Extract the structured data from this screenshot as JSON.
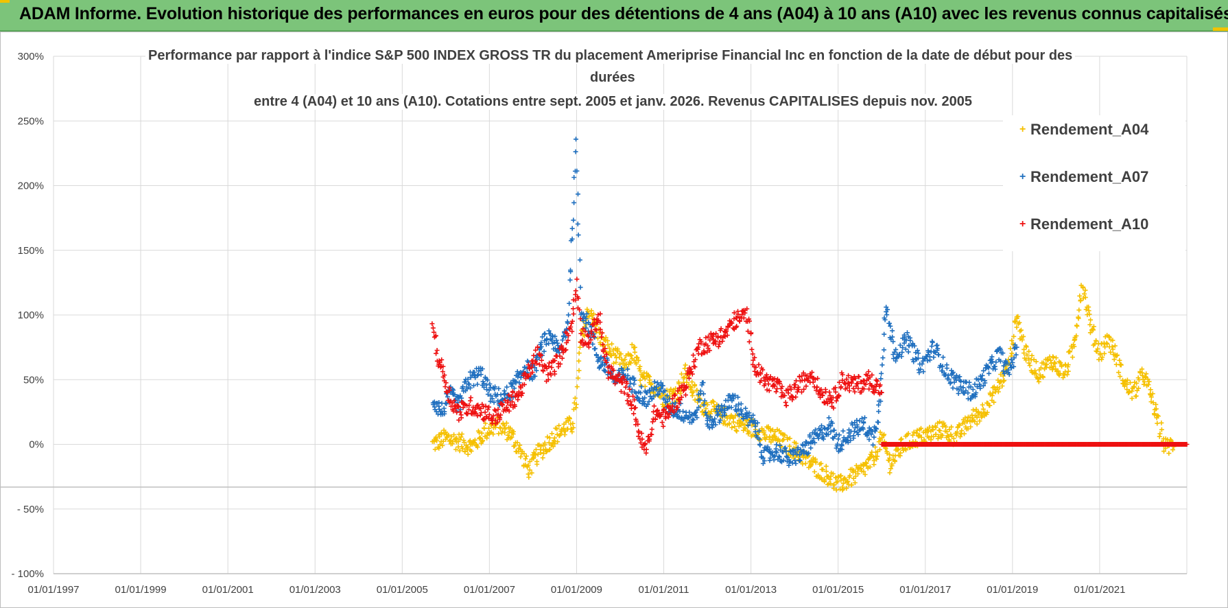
{
  "header": {
    "title": "ADAM Informe. Evolution historique des performances en euros pour des détentions de 4 ans (A04) à 10 ans (A10) avec les revenus connus capitalisés"
  },
  "chart_data": {
    "type": "scatter",
    "title_lines": [
      "Performance par rapport à l'indice S&P 500 INDEX GROSS TR  du placement Ameriprise Financial Inc en fonction de la date de début pour des",
      "durées",
      "entre 4 (A04) et 10 ans (A10). Cotations entre sept. 2005 et janv. 2026. Revenus CAPITALISES depuis nov. 2005"
    ],
    "ylim": [
      -100,
      300
    ],
    "xlim": [
      1997.0,
      2023.0
    ],
    "y_ticks": [
      {
        "value": 300,
        "label": "300%"
      },
      {
        "value": 250,
        "label": "250%"
      },
      {
        "value": 200,
        "label": "200%"
      },
      {
        "value": 150,
        "label": "150%"
      },
      {
        "value": 100,
        "label": "100%"
      },
      {
        "value": 50,
        "label": "50%"
      },
      {
        "value": 0,
        "label": "0%"
      },
      {
        "value": -50,
        "label": "- 50%"
      },
      {
        "value": -100,
        "label": "- 100%"
      }
    ],
    "x_ticks": [
      {
        "value": 1997,
        "label": "01/01/1997"
      },
      {
        "value": 1999,
        "label": "01/01/1999"
      },
      {
        "value": 2001,
        "label": "01/01/2001"
      },
      {
        "value": 2003,
        "label": "01/01/2003"
      },
      {
        "value": 2005,
        "label": "01/01/2005"
      },
      {
        "value": 2007,
        "label": "01/01/2007"
      },
      {
        "value": 2009,
        "label": "01/01/2009"
      },
      {
        "value": 2011,
        "label": "01/01/2011"
      },
      {
        "value": 2013,
        "label": "01/01/2013"
      },
      {
        "value": 2015,
        "label": "01/01/2015"
      },
      {
        "value": 2017,
        "label": "01/01/2017"
      },
      {
        "value": 2019,
        "label": "01/01/2019"
      },
      {
        "value": 2021,
        "label": "01/01/2021"
      }
    ],
    "series": [
      {
        "name": "Rendement_A04",
        "color": "#f5c000",
        "points": [
          [
            2005.7,
            0
          ],
          [
            2006.0,
            5
          ],
          [
            2006.3,
            2
          ],
          [
            2006.6,
            -2
          ],
          [
            2006.9,
            10
          ],
          [
            2007.2,
            15
          ],
          [
            2007.5,
            8
          ],
          [
            2007.7,
            -5
          ],
          [
            2007.9,
            -20
          ],
          [
            2008.1,
            -8
          ],
          [
            2008.4,
            3
          ],
          [
            2008.7,
            12
          ],
          [
            2008.9,
            15
          ],
          [
            2009.0,
            35
          ],
          [
            2009.1,
            80
          ],
          [
            2009.3,
            105
          ],
          [
            2009.5,
            85
          ],
          [
            2009.7,
            75
          ],
          [
            2009.9,
            68
          ],
          [
            2010.1,
            60
          ],
          [
            2010.3,
            72
          ],
          [
            2010.5,
            50
          ],
          [
            2010.8,
            45
          ],
          [
            2011.0,
            35
          ],
          [
            2011.3,
            40
          ],
          [
            2011.5,
            55
          ],
          [
            2011.7,
            40
          ],
          [
            2011.9,
            30
          ],
          [
            2012.2,
            25
          ],
          [
            2012.5,
            20
          ],
          [
            2012.8,
            15
          ],
          [
            2013.1,
            12
          ],
          [
            2013.3,
            8
          ],
          [
            2013.6,
            5
          ],
          [
            2013.9,
            -2
          ],
          [
            2014.2,
            -10
          ],
          [
            2014.5,
            -18
          ],
          [
            2014.8,
            -25
          ],
          [
            2015.0,
            -32
          ],
          [
            2015.2,
            -28
          ],
          [
            2015.5,
            -22
          ],
          [
            2015.8,
            -12
          ],
          [
            2016.0,
            5
          ],
          [
            2016.2,
            -15
          ],
          [
            2016.5,
            0
          ],
          [
            2016.8,
            5
          ],
          [
            2017.1,
            8
          ],
          [
            2017.4,
            12
          ],
          [
            2017.7,
            5
          ],
          [
            2018.0,
            18
          ],
          [
            2018.3,
            25
          ],
          [
            2018.6,
            40
          ],
          [
            2018.9,
            60
          ],
          [
            2019.0,
            80
          ],
          [
            2019.1,
            100
          ],
          [
            2019.3,
            70
          ],
          [
            2019.6,
            55
          ],
          [
            2019.9,
            65
          ],
          [
            2020.2,
            55
          ],
          [
            2020.4,
            75
          ],
          [
            2020.6,
            125
          ],
          [
            2020.8,
            90
          ],
          [
            2021.0,
            70
          ],
          [
            2021.2,
            82
          ],
          [
            2021.4,
            65
          ],
          [
            2021.6,
            45
          ],
          [
            2021.8,
            40
          ],
          [
            2022.0,
            55
          ],
          [
            2022.2,
            35
          ],
          [
            2022.4,
            10
          ],
          [
            2022.5,
            -2
          ],
          [
            2022.7,
            0
          ]
        ]
      },
      {
        "name": "Rendement_A07",
        "color": "#1f6fbf",
        "points": [
          [
            2005.7,
            35
          ],
          [
            2005.9,
            25
          ],
          [
            2006.1,
            38
          ],
          [
            2006.3,
            30
          ],
          [
            2006.5,
            48
          ],
          [
            2006.8,
            55
          ],
          [
            2007.0,
            40
          ],
          [
            2007.3,
            35
          ],
          [
            2007.6,
            45
          ],
          [
            2007.8,
            60
          ],
          [
            2008.0,
            55
          ],
          [
            2008.2,
            75
          ],
          [
            2008.4,
            85
          ],
          [
            2008.6,
            70
          ],
          [
            2008.8,
            95
          ],
          [
            2008.9,
            160
          ],
          [
            2009.0,
            230
          ],
          [
            2009.1,
            105
          ],
          [
            2009.3,
            90
          ],
          [
            2009.5,
            65
          ],
          [
            2009.7,
            60
          ],
          [
            2009.9,
            48
          ],
          [
            2010.1,
            55
          ],
          [
            2010.3,
            45
          ],
          [
            2010.6,
            35
          ],
          [
            2010.9,
            45
          ],
          [
            2011.1,
            30
          ],
          [
            2011.4,
            25
          ],
          [
            2011.7,
            20
          ],
          [
            2011.9,
            45
          ],
          [
            2012.0,
            15
          ],
          [
            2012.3,
            25
          ],
          [
            2012.6,
            35
          ],
          [
            2012.9,
            20
          ],
          [
            2013.1,
            15
          ],
          [
            2013.3,
            -10
          ],
          [
            2013.6,
            -5
          ],
          [
            2013.9,
            -12
          ],
          [
            2014.2,
            -5
          ],
          [
            2014.5,
            5
          ],
          [
            2014.8,
            15
          ],
          [
            2015.0,
            0
          ],
          [
            2015.3,
            10
          ],
          [
            2015.6,
            15
          ],
          [
            2015.8,
            5
          ],
          [
            2015.95,
            30
          ],
          [
            2016.0,
            60
          ],
          [
            2016.1,
            105
          ],
          [
            2016.3,
            70
          ],
          [
            2016.6,
            80
          ],
          [
            2016.9,
            60
          ],
          [
            2017.2,
            75
          ],
          [
            2017.5,
            55
          ],
          [
            2017.8,
            45
          ],
          [
            2018.1,
            40
          ],
          [
            2018.4,
            55
          ],
          [
            2018.7,
            70
          ],
          [
            2018.9,
            55
          ],
          [
            2019.1,
            75
          ]
        ]
      },
      {
        "name": "Rendement_A10",
        "color": "#ee1111",
        "points": [
          [
            2005.7,
            95
          ],
          [
            2005.8,
            70
          ],
          [
            2005.95,
            55
          ],
          [
            2006.1,
            35
          ],
          [
            2006.3,
            25
          ],
          [
            2006.6,
            30
          ],
          [
            2006.9,
            25
          ],
          [
            2007.1,
            20
          ],
          [
            2007.4,
            30
          ],
          [
            2007.7,
            40
          ],
          [
            2007.9,
            55
          ],
          [
            2008.1,
            70
          ],
          [
            2008.3,
            55
          ],
          [
            2008.5,
            60
          ],
          [
            2008.7,
            75
          ],
          [
            2008.9,
            95
          ],
          [
            2009.0,
            125
          ],
          [
            2009.1,
            85
          ],
          [
            2009.3,
            80
          ],
          [
            2009.5,
            100
          ],
          [
            2009.7,
            60
          ],
          [
            2009.9,
            50
          ],
          [
            2010.1,
            45
          ],
          [
            2010.3,
            30
          ],
          [
            2010.5,
            0
          ],
          [
            2010.6,
            -5
          ],
          [
            2010.8,
            25
          ],
          [
            2011.0,
            20
          ],
          [
            2011.2,
            30
          ],
          [
            2011.5,
            45
          ],
          [
            2011.8,
            75
          ],
          [
            2012.1,
            80
          ],
          [
            2012.4,
            85
          ],
          [
            2012.6,
            95
          ],
          [
            2012.9,
            100
          ],
          [
            2013.1,
            60
          ],
          [
            2013.3,
            50
          ],
          [
            2013.6,
            45
          ],
          [
            2013.8,
            35
          ],
          [
            2014.1,
            45
          ],
          [
            2014.4,
            55
          ],
          [
            2014.6,
            40
          ],
          [
            2014.9,
            35
          ],
          [
            2015.1,
            50
          ],
          [
            2015.4,
            45
          ],
          [
            2015.7,
            50
          ],
          [
            2015.9,
            45
          ],
          [
            2016.0,
            40
          ]
        ]
      }
    ],
    "zero_segment": {
      "series": "Rendement_A10",
      "from": 2016.0,
      "to": 2023.0,
      "value": 0
    },
    "legend": {
      "position": "top-right",
      "entries": [
        {
          "label": "Rendement_A04",
          "color": "#f5c000"
        },
        {
          "label": "Rendement_A07",
          "color": "#1f6fbf"
        },
        {
          "label": "Rendement_A10",
          "color": "#ee1111"
        }
      ]
    }
  }
}
